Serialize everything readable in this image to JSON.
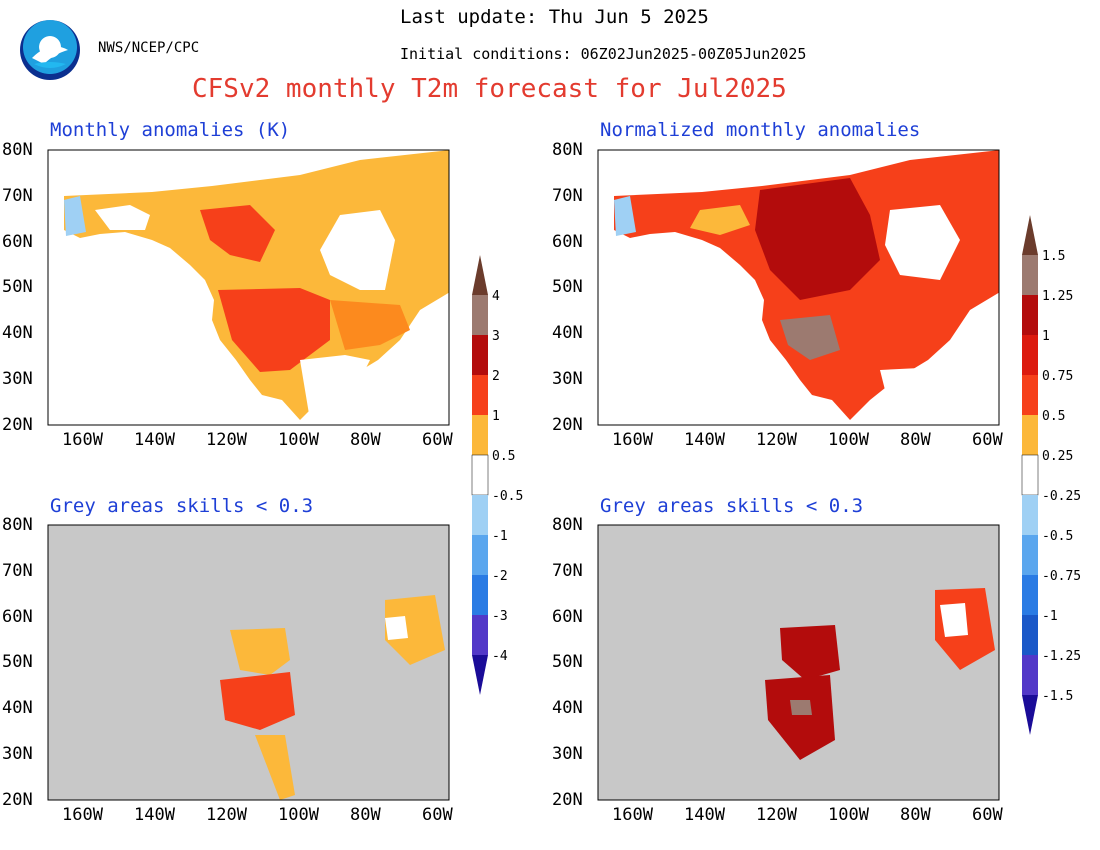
{
  "header": {
    "last_update": "Last update: Thu Jun  5 2025",
    "initial_conditions": "Initial conditions: 06Z02Jun2025-00Z05Jun2025",
    "org": "NWS/NCEP/CPC",
    "title": "CFSv2 monthly T2m forecast for Jul2025",
    "logo_text": "NOAA"
  },
  "panels": [
    {
      "title": "Monthly anomalies (K)"
    },
    {
      "title": "Normalized monthly anomalies"
    },
    {
      "title": "Grey areas skills < 0.3"
    },
    {
      "title": "Grey areas skills < 0.3"
    }
  ],
  "axes": {
    "lat_labels": [
      "80N",
      "70N",
      "60N",
      "50N",
      "40N",
      "30N",
      "20N"
    ],
    "lon_labels": [
      "160W",
      "140W",
      "120W",
      "100W",
      "80W",
      "60W"
    ]
  },
  "colorbars": [
    {
      "labels_top": [
        "4",
        "3",
        "2",
        "1",
        "0.5"
      ],
      "labels_bottom": [
        "-0.5",
        "-1",
        "-2",
        "-3",
        "-4"
      ]
    },
    {
      "labels_top": [
        "1.5",
        "1.25",
        "1",
        "0.75",
        "0.5",
        "0.25"
      ],
      "labels_bottom": [
        "-0.25",
        "-0.5",
        "-0.75",
        "-1",
        "-1.25",
        "-1.5"
      ]
    }
  ],
  "colors": {
    "light_orange": "#fcb83a",
    "orange": "#fc8a1e",
    "red_orange": "#f6401a",
    "dark_red": "#b30c0c",
    "brown_grey": "#9c7a70",
    "dark_brown": "#6b3c2c",
    "light_blue": "#9fd0f4",
    "blue1": "#5aa6ee",
    "blue2": "#2a7be4",
    "blue3": "#1a58c8",
    "indigo": "#5238c8",
    "navy": "#1a0c98",
    "skill_grey": "#c8c8c8"
  }
}
